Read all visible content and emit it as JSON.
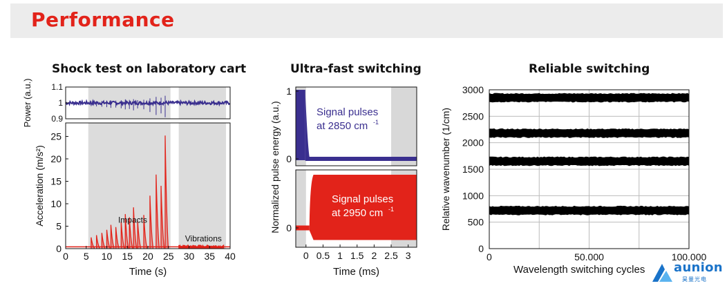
{
  "header": {
    "title": "Performance"
  },
  "logo": {
    "name": "aunion",
    "sub": "昊量光电"
  },
  "chart_data": [
    {
      "type": "line",
      "title": "Shock test on laboratory cart",
      "xlabel": "Time (s)",
      "xlim": [
        0,
        40
      ],
      "x_ticks": [
        0,
        5,
        10,
        15,
        20,
        25,
        30,
        35,
        40
      ],
      "shaded_regions": [
        [
          5.5,
          25.5
        ],
        [
          27.5,
          39
        ]
      ],
      "subplots": [
        {
          "name": "power",
          "ylabel": "Power (a.u.)",
          "ylim": [
            0.9,
            1.1
          ],
          "y_tick_labels": [
            "1.1",
            "1",
            "0.9"
          ],
          "color": "#3a2f8f",
          "baseline": 1.0
        },
        {
          "name": "acceleration",
          "ylabel": "Acceleration (m/s²)",
          "ylim": [
            0,
            28
          ],
          "y_ticks": [
            0,
            5,
            10,
            15,
            20,
            25
          ],
          "color": "#e2231a",
          "annotations": [
            "Impacts",
            "Vibrations"
          ],
          "impact_times": [
            6.2,
            7.5,
            8.8,
            10.0,
            11.0,
            12.2,
            13.5,
            14.5,
            15.5,
            16.5,
            17.5,
            19.0,
            20.5,
            22.0,
            23.2,
            24.2
          ],
          "impact_peaks": [
            2.5,
            3.0,
            3.5,
            4.2,
            5.3,
            4.8,
            6.0,
            7.7,
            7.0,
            9.2,
            6.2,
            7.5,
            11.8,
            16.5,
            14.0,
            25.2
          ],
          "vibration_range": [
            27.5,
            38.5
          ],
          "vibration_level": 0.7
        }
      ]
    },
    {
      "type": "line",
      "title": "Ultra-fast switching",
      "xlabel": "Time (ms)",
      "ylabel": "Normalized pulse energy (a.u.)",
      "xlim": [
        -0.3,
        3.25
      ],
      "x_tick_labels": [
        "0",
        "0.5",
        "1",
        "1.5",
        "2",
        "2.5",
        "3"
      ],
      "x_ticks": [
        0,
        0.5,
        1,
        1.5,
        2,
        2.5,
        3
      ],
      "y_tick_labels": [
        "1",
        "0"
      ],
      "series": [
        {
          "name": "Signal pulses at 2850 cm⁻¹",
          "label_line1": "Signal pulses",
          "label_line2": "at 2850 cm",
          "label_sup": "-1",
          "color": "#3a2f8f"
        },
        {
          "name": "Signal pulses at 2950 cm⁻¹",
          "label_line1": "Signal pulses",
          "label_line2": "at 2950 cm",
          "label_sup": "-1",
          "color": "#e2231a"
        }
      ]
    },
    {
      "type": "scatter",
      "title": "Reliable switching",
      "xlabel": "Wavelength switching cycles",
      "ylabel": "Relative wavenumber (1/cm)",
      "xlim": [
        0,
        100000
      ],
      "ylim": [
        0,
        3000
      ],
      "x_tick_labels": [
        "0",
        "50.000",
        "100.000"
      ],
      "x_ticks": [
        0,
        50000,
        100000
      ],
      "y_ticks": [
        0,
        500,
        1000,
        1500,
        2000,
        2500,
        3000
      ],
      "grid": true,
      "color": "#000000",
      "levels": [
        2850,
        2180,
        1650,
        720
      ]
    }
  ]
}
